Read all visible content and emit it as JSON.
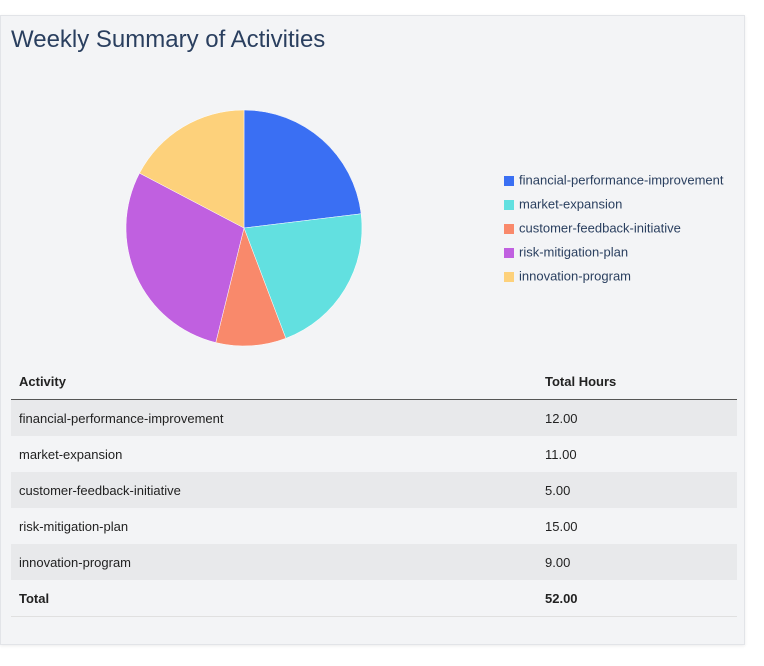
{
  "title": "Weekly Summary of Activities",
  "chart_data": {
    "type": "pie",
    "categories": [
      "financial-performance-improvement",
      "market-expansion",
      "customer-feedback-initiative",
      "risk-mitigation-plan",
      "innovation-program"
    ],
    "values": [
      12,
      11,
      5,
      15,
      9
    ],
    "colors": [
      "#3a6ff3",
      "#62e0e0",
      "#f9896b",
      "#c060e0",
      "#fdd17b"
    ],
    "legend": "right"
  },
  "table": {
    "header": [
      "Activity",
      "Total Hours"
    ],
    "rows": [
      [
        "financial-performance-improvement",
        "12.00"
      ],
      [
        "market-expansion",
        "11.00"
      ],
      [
        "customer-feedback-initiative",
        "5.00"
      ],
      [
        "risk-mitigation-plan",
        "15.00"
      ],
      [
        "innovation-program",
        "9.00"
      ]
    ],
    "total": [
      "Total",
      "52.00"
    ]
  }
}
